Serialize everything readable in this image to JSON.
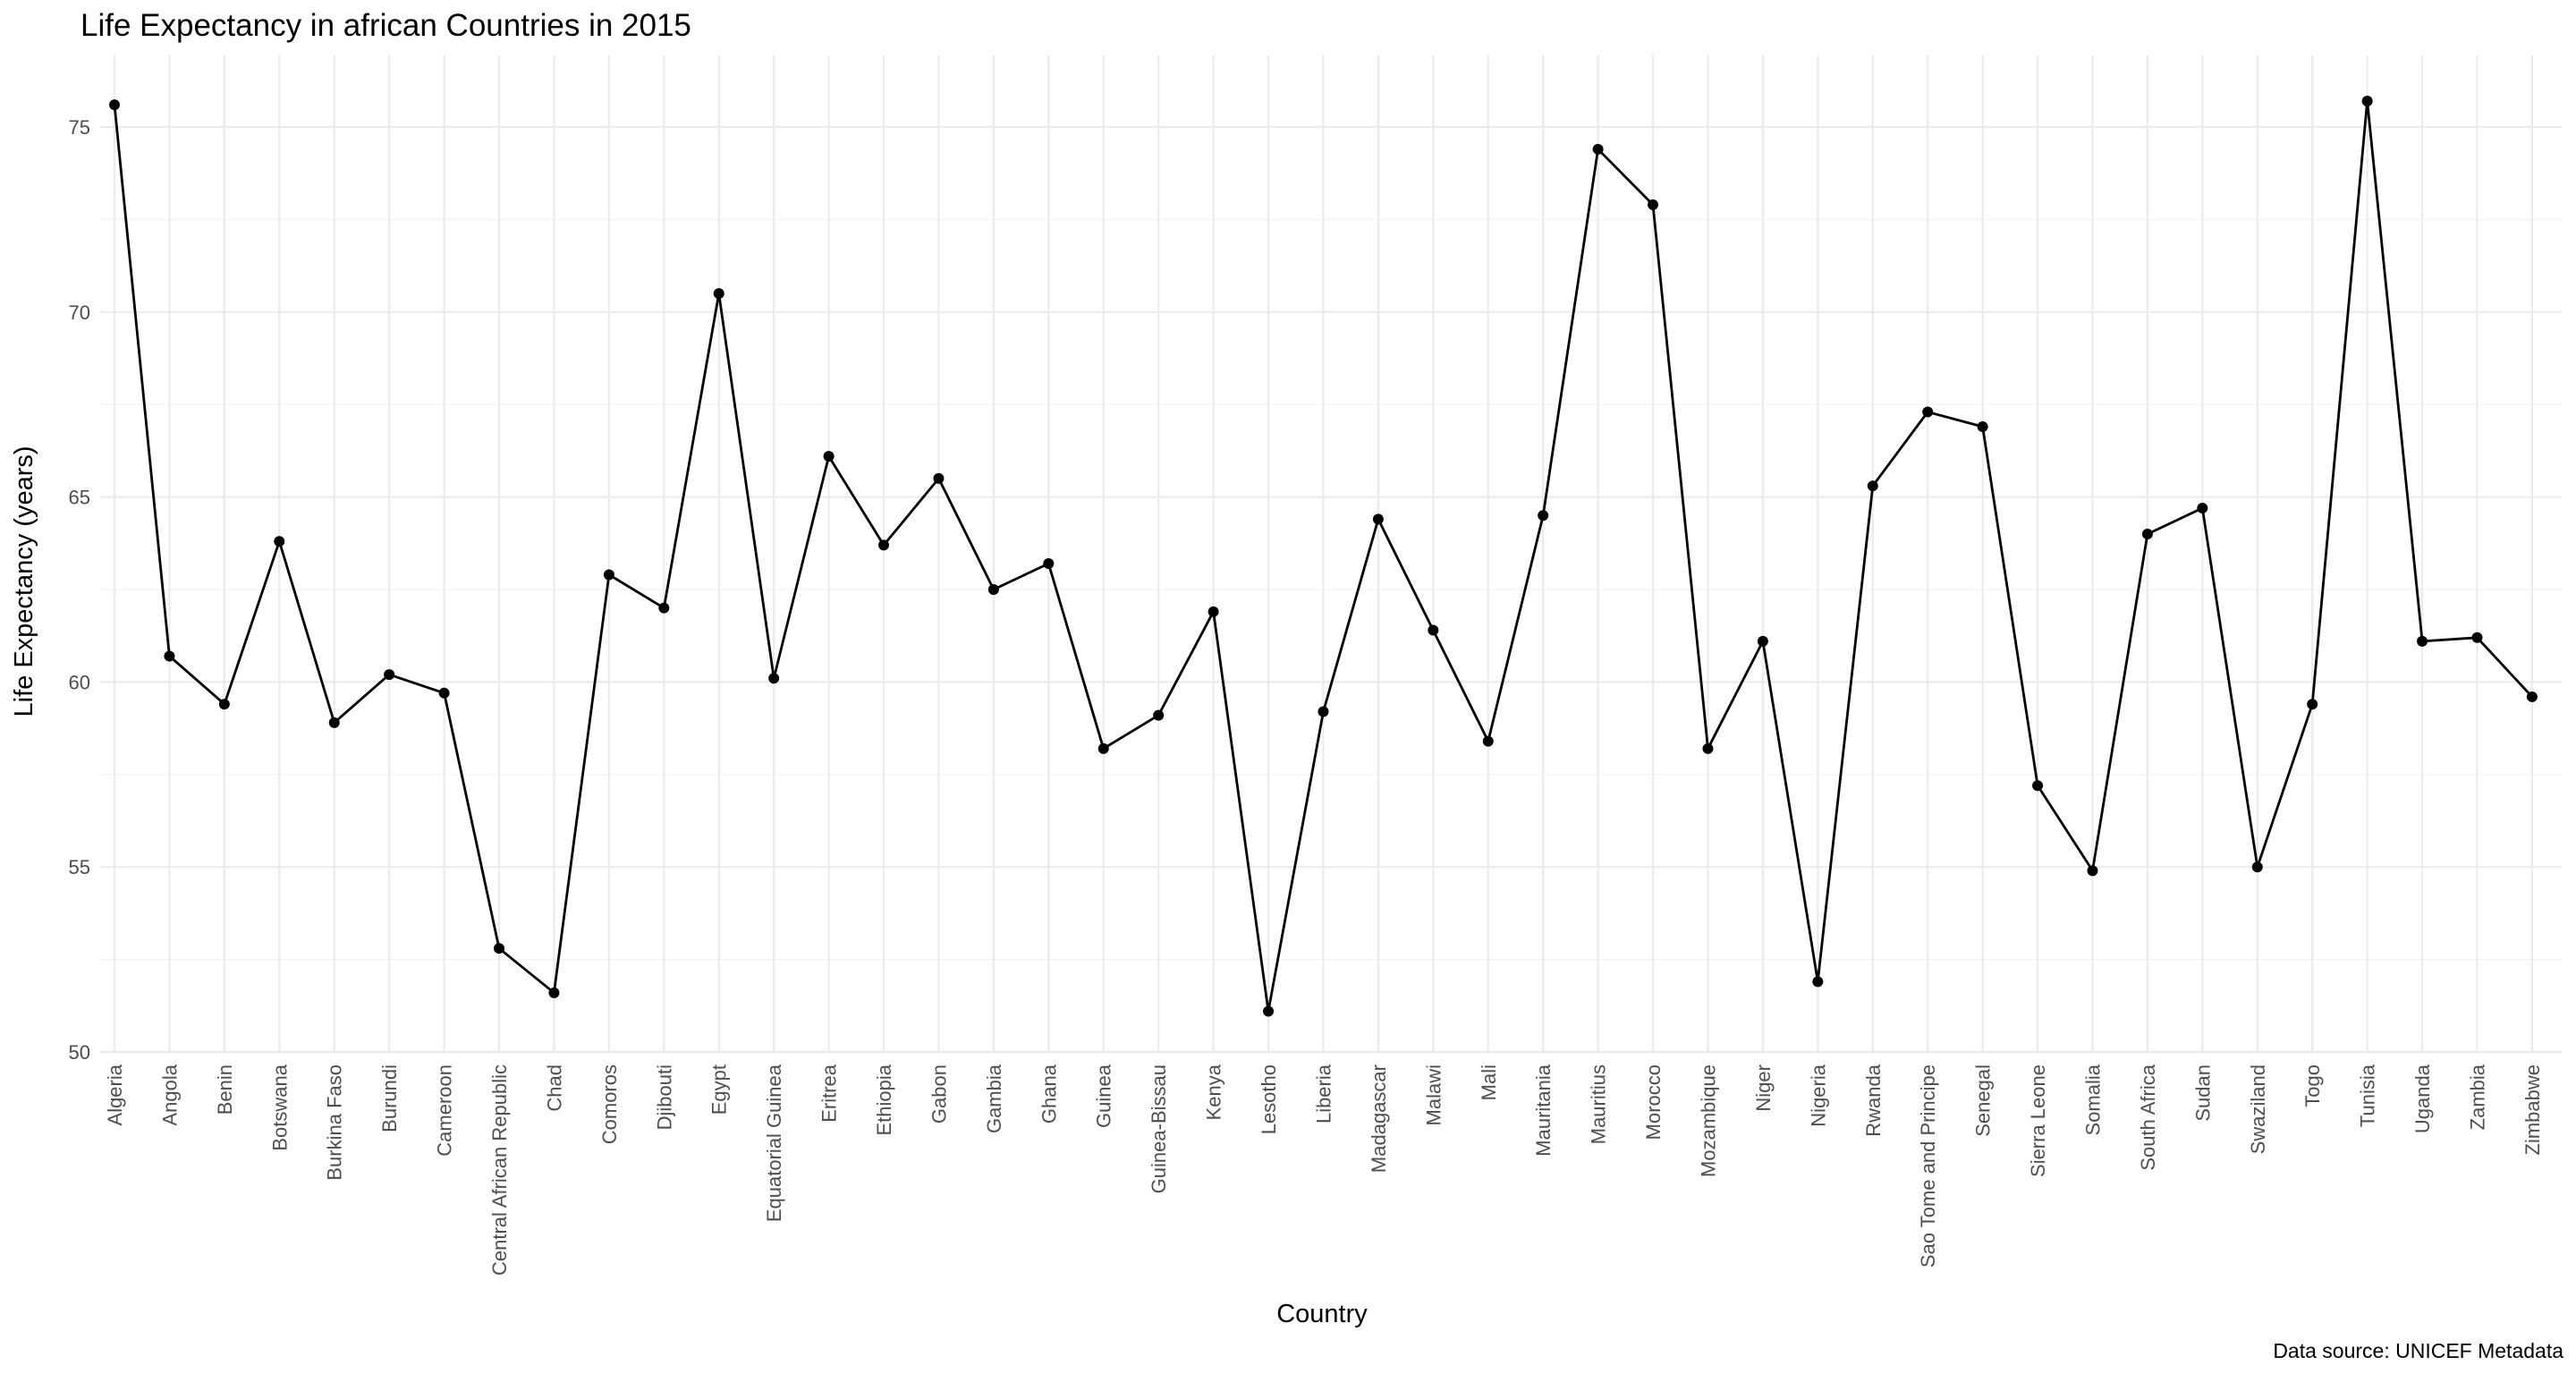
{
  "chart_data": {
    "type": "line",
    "title": "Life Expectancy in african Countries in 2015",
    "xlabel": "Country",
    "ylabel": "Life Expectancy (years)",
    "caption": "Data source: UNICEF Metadata",
    "ylim": [
      50,
      76
    ],
    "yticks": [
      50,
      55,
      60,
      65,
      70,
      75
    ],
    "grid": true,
    "legend": "none",
    "colors": {
      "line": "#000000",
      "point": "#000000",
      "grid": "#ebebeb"
    },
    "categories": [
      "Algeria",
      "Angola",
      "Benin",
      "Botswana",
      "Burkina Faso",
      "Burundi",
      "Cameroon",
      "Central African Republic",
      "Chad",
      "Comoros",
      "Djibouti",
      "Egypt",
      "Equatorial Guinea",
      "Eritrea",
      "Ethiopia",
      "Gabon",
      "Gambia",
      "Ghana",
      "Guinea",
      "Guinea-Bissau",
      "Kenya",
      "Lesotho",
      "Liberia",
      "Madagascar",
      "Malawi",
      "Mali",
      "Mauritania",
      "Mauritius",
      "Morocco",
      "Mozambique",
      "Niger",
      "Nigeria",
      "Rwanda",
      "Sao Tome and Principe",
      "Senegal",
      "Sierra Leone",
      "Somalia",
      "South Africa",
      "Sudan",
      "Swaziland",
      "Togo",
      "Tunisia",
      "Uganda",
      "Zambia",
      "Zimbabwe"
    ],
    "values": [
      75.6,
      60.7,
      59.4,
      63.8,
      58.9,
      60.2,
      59.7,
      52.8,
      51.6,
      62.9,
      62.0,
      70.5,
      60.1,
      66.1,
      63.7,
      65.5,
      62.5,
      63.2,
      58.2,
      59.1,
      61.9,
      51.1,
      59.2,
      64.4,
      61.4,
      58.4,
      64.5,
      74.4,
      72.9,
      58.2,
      61.1,
      51.9,
      65.3,
      67.3,
      66.9,
      57.2,
      54.9,
      64.0,
      64.7,
      55.0,
      59.4,
      75.7,
      61.1,
      61.2,
      59.6
    ]
  }
}
